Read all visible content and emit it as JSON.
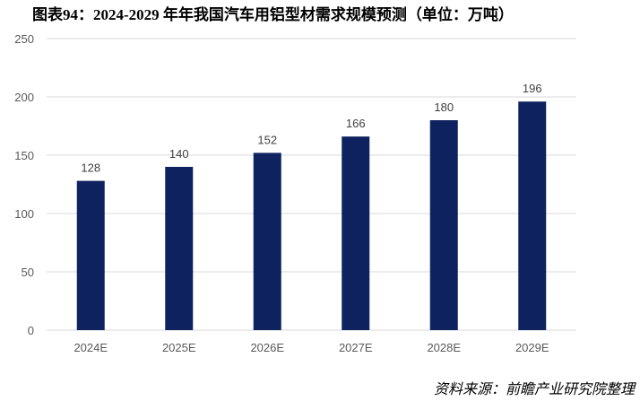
{
  "title": "图表94：2024-2029 年年我国汽车用铝型材需求规模预测（单位：万吨）",
  "source": "资料来源：前瞻产业研究院整理",
  "chart_data": {
    "type": "bar",
    "title": "图表94：2024-2029 年年我国汽车用铝型材需求规模预测（单位：万吨）",
    "categories": [
      "2024E",
      "2025E",
      "2026E",
      "2027E",
      "2028E",
      "2029E"
    ],
    "values": [
      128,
      140,
      152,
      166,
      180,
      196
    ],
    "data_labels": [
      "128",
      "140",
      "152",
      "166",
      "180",
      "196"
    ],
    "ylim": [
      0,
      250
    ],
    "yticks": [
      0,
      50,
      100,
      150,
      200,
      250
    ],
    "ytick_labels": [
      "0",
      "50",
      "100",
      "150",
      "200",
      "250"
    ],
    "xlabel": "",
    "ylabel": "",
    "grid": true,
    "bar_color": "#0E2260",
    "grid_color": "#D9D9D9"
  }
}
